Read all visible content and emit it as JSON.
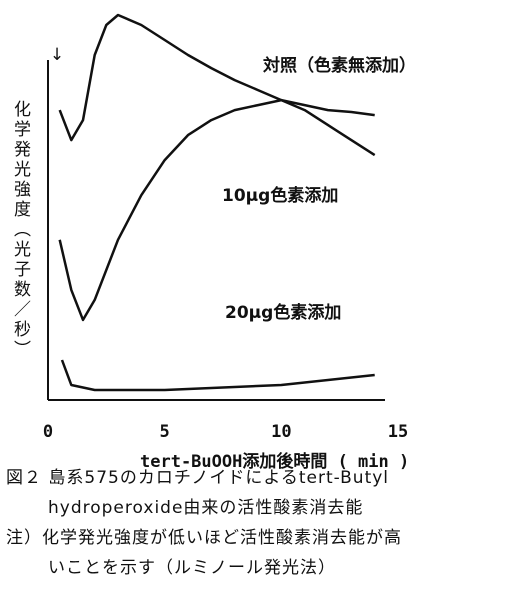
{
  "chart_data": {
    "type": "line",
    "ylabel": "化学発光強度（光子数／秒）",
    "xlabel": "tert-BuOOH添加後時間 ( min )",
    "annotation": "↓",
    "xlim": [
      0,
      15
    ],
    "xticks": [
      0,
      5,
      10,
      15
    ],
    "ylim": [
      0,
      100
    ],
    "series": [
      {
        "name": "対照（色素無添加）",
        "color": "#111111",
        "x": [
          0.5,
          1,
          1.5,
          2,
          2.5,
          3,
          4,
          5,
          6,
          7,
          8,
          9,
          10,
          11,
          12,
          13,
          14
        ],
        "values": [
          75.3,
          67.5,
          72.7,
          89.6,
          97.4,
          100,
          97.4,
          93.5,
          89.6,
          86.2,
          83.1,
          80.5,
          77.9,
          75.3,
          71.4,
          67.5,
          63.6
        ]
      },
      {
        "name": "10μg色素添加",
        "color": "#111111",
        "x": [
          0.5,
          1,
          1.5,
          2,
          3,
          4,
          5,
          6,
          7,
          8,
          9,
          10,
          11,
          12,
          13,
          14
        ],
        "values": [
          41.6,
          28.6,
          20.8,
          26,
          41.6,
          53.2,
          62.3,
          68.8,
          72.7,
          75.3,
          76.6,
          77.9,
          76.6,
          75.3,
          74.8,
          74
        ]
      },
      {
        "name": "20μg色素添加",
        "color": "#111111",
        "x": [
          0.6,
          1,
          2,
          5,
          10,
          14
        ],
        "values": [
          10.4,
          3.9,
          2.6,
          2.6,
          3.9,
          6.5
        ]
      }
    ],
    "caption": [
      "図２ 島系575のカロチノイドによるtert-Butyl",
      "hydroperoxide由来の活性酸素消去能",
      "注）化学発光強度が低いほど活性酸素消去能が高",
      "いことを示す（ルミノール発光法）"
    ]
  }
}
